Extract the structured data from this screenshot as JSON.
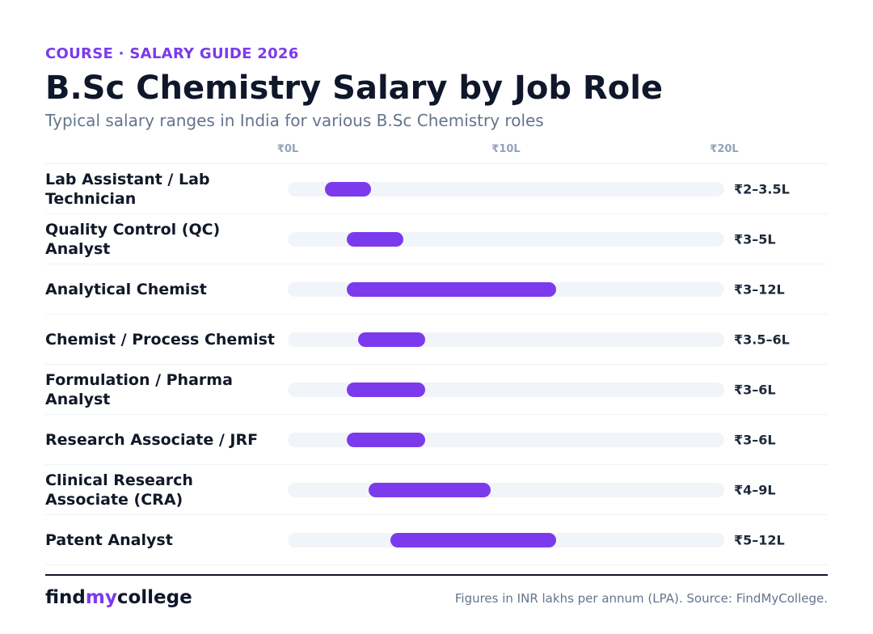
{
  "eyebrow": "COURSE · SALARY GUIDE 2026",
  "footer": {
    "logo_part1": "find",
    "logo_part2": "my",
    "logo_part3": "college",
    "source": "Figures in INR lakhs per annum (LPA). Source: FindMyCollege."
  },
  "colors": {
    "accent": "#7c3aed",
    "track": "#f1f5f9",
    "title": "#0f172a"
  },
  "chart_data": {
    "type": "bar",
    "orientation": "horizontal-range",
    "title": "B.Sc Chemistry Salary by Job Role",
    "subtitle": "Typical salary ranges in India for various B.Sc Chemistry roles",
    "xlim": [
      0,
      20
    ],
    "ticks": [
      {
        "value": 0,
        "label": "₹0L"
      },
      {
        "value": 10,
        "label": "₹10L"
      },
      {
        "value": 20,
        "label": "₹20L"
      }
    ],
    "grid": false,
    "legend": "none",
    "rows": [
      {
        "role": "Lab Assistant / Lab Technician",
        "min": 2,
        "max": 3.5,
        "label": "₹2–3.5L"
      },
      {
        "role": "Quality Control (QC) Analyst",
        "min": 3,
        "max": 5,
        "label": "₹3–5L"
      },
      {
        "role": "Analytical Chemist",
        "min": 3,
        "max": 12,
        "label": "₹3–12L"
      },
      {
        "role": "Chemist / Process Chemist",
        "min": 3.5,
        "max": 6,
        "label": "₹3.5–6L"
      },
      {
        "role": "Formulation / Pharma Analyst",
        "min": 3,
        "max": 6,
        "label": "₹3–6L"
      },
      {
        "role": "Research Associate / JRF",
        "min": 3,
        "max": 6,
        "label": "₹3–6L"
      },
      {
        "role": "Clinical Research Associate (CRA)",
        "min": 4,
        "max": 9,
        "label": "₹4–9L"
      },
      {
        "role": "Patent Analyst",
        "min": 5,
        "max": 12,
        "label": "₹5–12L"
      }
    ]
  }
}
